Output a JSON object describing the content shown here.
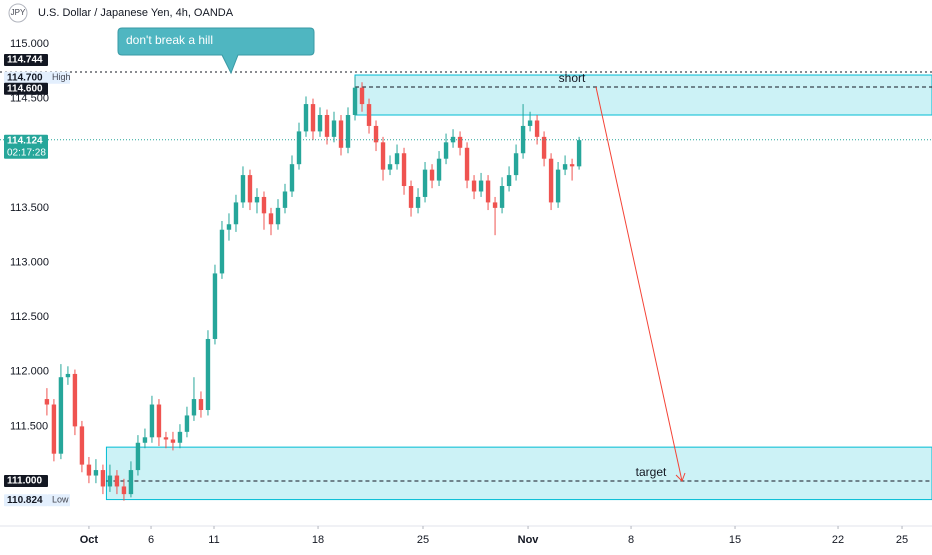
{
  "chart_data": {
    "type": "candlestick",
    "symbol": "JPY",
    "title": "U.S. Dollar / Japanese Yen, 4h, OANDA",
    "up_color": "#26a69a",
    "down_color": "#ef5350",
    "ohlc": [
      [
        111.75,
        111.85,
        111.6,
        111.7
      ],
      [
        111.7,
        111.75,
        111.18,
        111.25
      ],
      [
        111.25,
        112.07,
        111.2,
        111.95
      ],
      [
        111.95,
        112.05,
        111.88,
        111.98
      ],
      [
        111.98,
        112.02,
        111.42,
        111.5
      ],
      [
        111.5,
        111.55,
        111.08,
        111.15
      ],
      [
        111.15,
        111.22,
        110.98,
        111.05
      ],
      [
        111.05,
        111.2,
        110.98,
        111.1
      ],
      [
        111.1,
        111.15,
        110.88,
        110.95
      ],
      [
        110.95,
        111.15,
        110.9,
        111.05
      ],
      [
        111.05,
        111.1,
        110.88,
        110.95
      ],
      [
        110.95,
        111.02,
        110.82,
        110.88
      ],
      [
        110.88,
        111.18,
        110.85,
        111.1
      ],
      [
        111.1,
        111.42,
        111.05,
        111.35
      ],
      [
        111.35,
        111.48,
        111.3,
        111.4
      ],
      [
        111.4,
        111.78,
        111.35,
        111.7
      ],
      [
        111.7,
        111.75,
        111.32,
        111.4
      ],
      [
        111.4,
        111.45,
        111.3,
        111.38
      ],
      [
        111.38,
        111.45,
        111.28,
        111.35
      ],
      [
        111.35,
        111.52,
        111.3,
        111.45
      ],
      [
        111.45,
        111.68,
        111.4,
        111.6
      ],
      [
        111.6,
        111.95,
        111.55,
        111.75
      ],
      [
        111.75,
        111.82,
        111.58,
        111.65
      ],
      [
        111.65,
        112.38,
        111.6,
        112.3
      ],
      [
        112.3,
        112.98,
        112.25,
        112.9
      ],
      [
        112.9,
        113.38,
        112.85,
        113.3
      ],
      [
        113.3,
        113.45,
        113.2,
        113.35
      ],
      [
        113.35,
        113.62,
        113.28,
        113.55
      ],
      [
        113.55,
        113.88,
        113.5,
        113.8
      ],
      [
        113.8,
        113.85,
        113.48,
        113.55
      ],
      [
        113.55,
        113.68,
        113.45,
        113.6
      ],
      [
        113.6,
        113.65,
        113.3,
        113.45
      ],
      [
        113.45,
        113.5,
        113.25,
        113.35
      ],
      [
        113.35,
        113.58,
        113.3,
        113.5
      ],
      [
        113.5,
        113.72,
        113.45,
        113.65
      ],
      [
        113.65,
        113.98,
        113.6,
        113.9
      ],
      [
        113.9,
        114.28,
        113.85,
        114.2
      ],
      [
        114.2,
        114.52,
        114.15,
        114.45
      ],
      [
        114.45,
        114.5,
        114.12,
        114.2
      ],
      [
        114.2,
        114.42,
        114.15,
        114.35
      ],
      [
        114.35,
        114.4,
        114.08,
        114.15
      ],
      [
        114.15,
        114.38,
        114.1,
        114.3
      ],
      [
        114.3,
        114.35,
        113.98,
        114.05
      ],
      [
        114.05,
        114.42,
        114.0,
        114.35
      ],
      [
        114.35,
        114.7,
        114.3,
        114.6
      ],
      [
        114.6,
        114.65,
        114.38,
        114.45
      ],
      [
        114.45,
        114.5,
        114.18,
        114.25
      ],
      [
        114.25,
        114.3,
        114.02,
        114.1
      ],
      [
        114.1,
        114.15,
        113.75,
        113.85
      ],
      [
        113.85,
        113.98,
        113.8,
        113.9
      ],
      [
        113.9,
        114.08,
        113.85,
        114.0
      ],
      [
        114.0,
        114.05,
        113.62,
        113.7
      ],
      [
        113.7,
        113.75,
        113.42,
        113.5
      ],
      [
        113.5,
        113.68,
        113.45,
        113.6
      ],
      [
        113.6,
        113.92,
        113.55,
        113.85
      ],
      [
        113.85,
        113.9,
        113.68,
        113.75
      ],
      [
        113.75,
        114.02,
        113.7,
        113.95
      ],
      [
        113.95,
        114.18,
        113.9,
        114.1
      ],
      [
        114.1,
        114.22,
        114.05,
        114.15
      ],
      [
        114.15,
        114.2,
        113.98,
        114.05
      ],
      [
        114.05,
        114.1,
        113.68,
        113.75
      ],
      [
        113.75,
        113.8,
        113.58,
        113.65
      ],
      [
        113.65,
        113.82,
        113.6,
        113.75
      ],
      [
        113.75,
        113.8,
        113.48,
        113.55
      ],
      [
        113.55,
        113.6,
        113.25,
        113.5
      ],
      [
        113.5,
        113.78,
        113.45,
        113.7
      ],
      [
        113.7,
        113.88,
        113.65,
        113.8
      ],
      [
        113.8,
        114.08,
        113.75,
        114.0
      ],
      [
        114.0,
        114.45,
        113.95,
        114.25
      ],
      [
        114.25,
        114.38,
        114.2,
        114.3
      ],
      [
        114.3,
        114.35,
        114.08,
        114.15
      ],
      [
        114.15,
        114.2,
        113.88,
        113.95
      ],
      [
        113.95,
        114.0,
        113.48,
        113.55
      ],
      [
        113.55,
        113.92,
        113.5,
        113.85
      ],
      [
        113.85,
        113.98,
        113.8,
        113.9
      ],
      [
        113.9,
        113.95,
        113.75,
        113.88
      ],
      [
        113.88,
        114.15,
        113.85,
        114.12
      ]
    ],
    "xlim": [
      -6.7,
      126.4
    ],
    "xticks": [
      {
        "value": 6,
        "label": "Oct"
      },
      14.87,
      23.86,
      38.72,
      53.71,
      {
        "value": 68.71,
        "label": "Nov"
      },
      83.42,
      98.27,
      112.98,
      122.12
    ],
    "xtick_labels": [
      "Oct",
      "6",
      "11",
      "18",
      "25",
      "Nov",
      "8",
      "15",
      "22",
      "25"
    ],
    "ylim": [
      110.5973,
      115.4027
    ],
    "yticks": [
      {
        "value": 115,
        "label": "115.000"
      },
      {
        "value": 114.5,
        "label": "114.500"
      },
      {
        "value": 113.5,
        "label": "113.500"
      },
      {
        "value": 113,
        "label": "113.000"
      },
      {
        "value": 112.5,
        "label": "112.500"
      },
      {
        "value": 112,
        "label": "112.000"
      },
      {
        "value": 111.5,
        "label": "111.500"
      }
    ],
    "grid": false,
    "price_tags": [
      {
        "value": 114.744,
        "label": "114.744"
      },
      {
        "value": 114.7,
        "label": "114.700",
        "note": "High"
      },
      {
        "value": 114.6,
        "label": "114.600"
      },
      {
        "value": 114.124,
        "label": "114.124",
        "countdown": "02:17:28"
      },
      {
        "value": 111.0,
        "label": "111.000"
      },
      {
        "value": 110.824,
        "label": "110.824",
        "note": "Low"
      }
    ],
    "callout": "don't break a hill",
    "zones": [
      {
        "label": "short",
        "top": 114.716,
        "bottom": 114.35,
        "level": 114.606
      },
      {
        "label": "target",
        "top": 111.31,
        "bottom": 110.83,
        "level": 111.0
      }
    ]
  }
}
